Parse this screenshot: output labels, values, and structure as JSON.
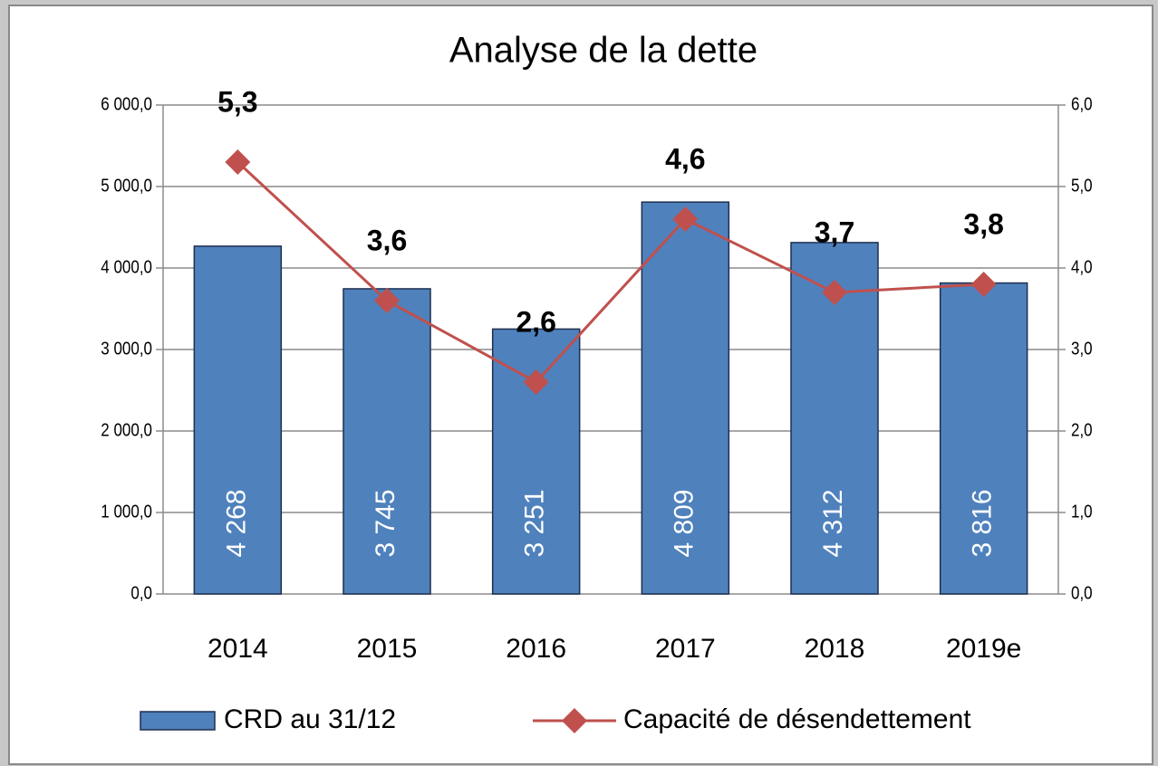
{
  "chart_data": {
    "type": "bar",
    "title": "Analyse de la dette",
    "categories": [
      "2014",
      "2015",
      "2016",
      "2017",
      "2018",
      "2019e"
    ],
    "series": [
      {
        "name": "CRD au 31/12",
        "type": "bar",
        "color": "#4f81bd",
        "values": [
          4268,
          3745,
          3251,
          4809,
          4312,
          3816
        ],
        "value_labels": [
          "4 268",
          "3 745",
          "3 251",
          "4 809",
          "4 312",
          "3 816"
        ]
      },
      {
        "name": "Capacité de désendettement",
        "type": "line",
        "axis": "y2",
        "color": "#c0504d",
        "values": [
          5.3,
          3.6,
          2.6,
          4.6,
          3.7,
          3.8
        ],
        "value_labels": [
          "5,3",
          "3,6",
          "2,6",
          "4,6",
          "3,7",
          "3,8"
        ]
      }
    ],
    "ylim": [
      0,
      6000
    ],
    "yticks": [
      {
        "value": 0,
        "label": "0,0"
      },
      {
        "value": 1000,
        "label": "1 000,0"
      },
      {
        "value": 2000,
        "label": "2 000,0"
      },
      {
        "value": 3000,
        "label": "3 000,0"
      },
      {
        "value": 4000,
        "label": "4 000,0"
      },
      {
        "value": 5000,
        "label": "5 000,0"
      },
      {
        "value": 6000,
        "label": "6 000,0"
      }
    ],
    "y2lim": [
      0,
      6
    ],
    "y2ticks": [
      {
        "value": 0,
        "label": "0,0"
      },
      {
        "value": 1,
        "label": "1,0"
      },
      {
        "value": 2,
        "label": "2,0"
      },
      {
        "value": 3,
        "label": "3,0"
      },
      {
        "value": 4,
        "label": "4,0"
      },
      {
        "value": 5,
        "label": "5,0"
      },
      {
        "value": 6,
        "label": "6,0"
      }
    ],
    "grid": true,
    "legend": "bottom"
  }
}
